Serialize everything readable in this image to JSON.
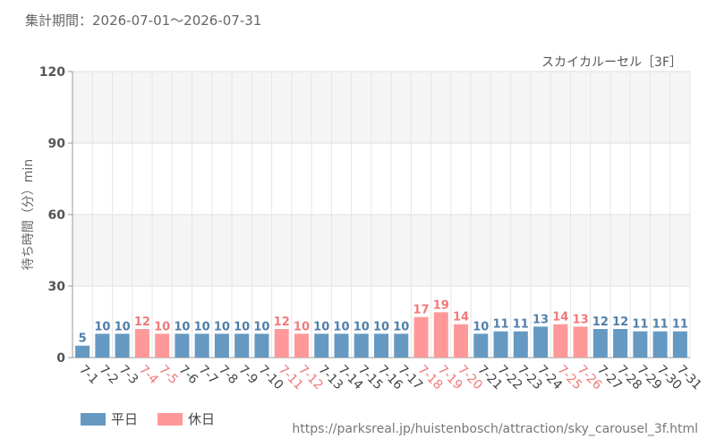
{
  "period_text": "集計期間：2026-07-01～2026-07-31",
  "source_url": "https://parksreal.jp/huistenbosch/attraction/sky_carousel_3f.html",
  "colors": {
    "weekday": "#6699C2",
    "holiday": "#FF9999",
    "holiday_text": "#F07878",
    "weekday_text": "#4F7FAA"
  },
  "legend": [
    {
      "label": "平日",
      "kind": "weekday"
    },
    {
      "label": "休日",
      "kind": "holiday"
    }
  ],
  "chart_data": {
    "type": "bar",
    "subtitle": "スカイカルーセル［3F］",
    "ylabel": "待ち時間（分）min",
    "ylim": [
      0,
      120
    ],
    "yticks": [
      0,
      30,
      60,
      90,
      120
    ],
    "grid": true,
    "categories": [
      "7-1",
      "7-2",
      "7-3",
      "7-4",
      "7-5",
      "7-6",
      "7-7",
      "7-8",
      "7-9",
      "7-10",
      "7-11",
      "7-12",
      "7-13",
      "7-14",
      "7-15",
      "7-16",
      "7-17",
      "7-18",
      "7-19",
      "7-20",
      "7-21",
      "7-22",
      "7-23",
      "7-24",
      "7-25",
      "7-26",
      "7-27",
      "7-28",
      "7-29",
      "7-30",
      "7-31"
    ],
    "values": [
      5,
      10,
      10,
      12,
      10,
      10,
      10,
      10,
      10,
      10,
      12,
      10,
      10,
      10,
      10,
      10,
      10,
      17,
      19,
      14,
      10,
      11,
      11,
      13,
      14,
      13,
      12,
      12,
      11,
      11,
      11
    ],
    "day_type": [
      "weekday",
      "weekday",
      "weekday",
      "holiday",
      "holiday",
      "weekday",
      "weekday",
      "weekday",
      "weekday",
      "weekday",
      "holiday",
      "holiday",
      "weekday",
      "weekday",
      "weekday",
      "weekday",
      "weekday",
      "holiday",
      "holiday",
      "holiday",
      "weekday",
      "weekday",
      "weekday",
      "weekday",
      "holiday",
      "holiday",
      "weekday",
      "weekday",
      "weekday",
      "weekday",
      "weekday"
    ]
  }
}
